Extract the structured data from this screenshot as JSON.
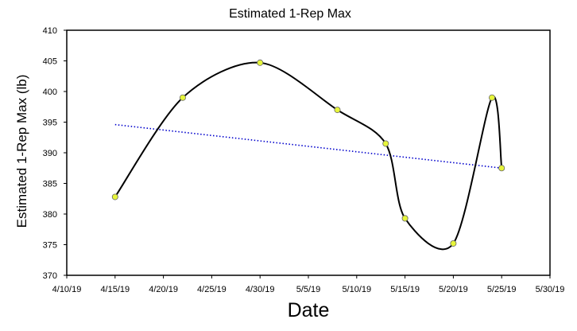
{
  "chart_data": {
    "type": "scatter",
    "title": "Estimated 1-Rep Max",
    "xlabel": "Date",
    "ylabel": "Estimated 1-Rep Max (lb)",
    "xlim": [
      "2019-04-10",
      "2019-05-30"
    ],
    "ylim": [
      370,
      410
    ],
    "x_ticks": [
      "4/10/19",
      "4/15/19",
      "4/20/19",
      "4/25/19",
      "4/30/19",
      "5/5/19",
      "5/10/19",
      "5/15/19",
      "5/20/19",
      "5/25/19",
      "5/30/19"
    ],
    "y_ticks": [
      "370",
      "375",
      "380",
      "385",
      "390",
      "395",
      "400",
      "405",
      "410"
    ],
    "grid": false,
    "series": [
      {
        "style": "smoothed line with markers",
        "line_color": "#000000",
        "marker_color": "#e6f53a",
        "points": [
          {
            "x": "2019-04-15",
            "y": 382.8
          },
          {
            "x": "2019-04-22",
            "y": 399.0
          },
          {
            "x": "2019-04-30",
            "y": 404.7
          },
          {
            "x": "2019-05-08",
            "y": 397.0
          },
          {
            "x": "2019-05-13",
            "y": 391.5
          },
          {
            "x": "2019-05-15",
            "y": 379.3
          },
          {
            "x": "2019-05-20",
            "y": 375.2
          },
          {
            "x": "2019-05-24",
            "y": 399.0
          },
          {
            "x": "2019-05-25",
            "y": 387.5
          }
        ]
      }
    ],
    "trendline": {
      "style": "dotted linear",
      "color": "#0000cc",
      "from": {
        "x": "2019-04-15",
        "y": 394.6
      },
      "to": {
        "x": "2019-05-25",
        "y": 387.5
      }
    }
  }
}
